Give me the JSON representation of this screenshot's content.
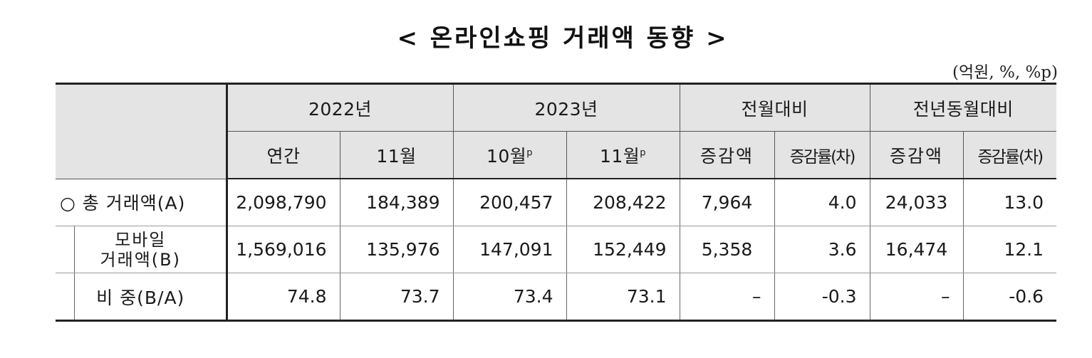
{
  "title": "< 온라인쇼핑 거래액 동향 >",
  "unit": "(억원, %, %p)",
  "header": {
    "group": [
      "2022년",
      "2023년",
      "전월대비",
      "전년동월대비"
    ],
    "sub": [
      "연간",
      "11월",
      "10월",
      "11월",
      "증감액",
      "증감률(차)",
      "증감액",
      "증감률(차)"
    ],
    "prelim_mark": "p"
  },
  "rows": [
    {
      "label": "○ 총 거래액(A)",
      "values": [
        "2,098,790",
        "184,389",
        "200,457",
        "208,422",
        "7,964",
        "4.0",
        "24,033",
        "13.0"
      ]
    },
    {
      "label_line1": "모바일",
      "label_line2": "거래액(B)",
      "values": [
        "1,569,016",
        "135,976",
        "147,091",
        "152,449",
        "5,358",
        "3.6",
        "16,474",
        "12.1"
      ]
    },
    {
      "label": "비 중(B/A)",
      "values": [
        "74.8",
        "73.7",
        "73.4",
        "73.1",
        "–",
        "-0.3",
        "–",
        "-0.6"
      ]
    }
  ]
}
